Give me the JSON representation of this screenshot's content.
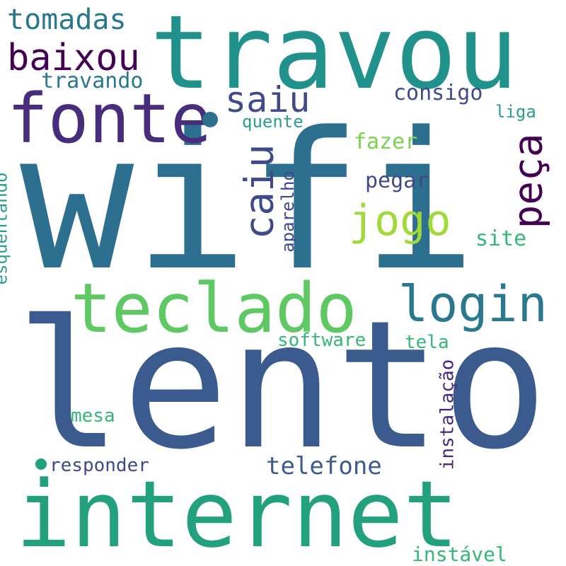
{
  "words": {
    "wifi": {
      "text": "wifi",
      "color": "#2d6f8f"
    },
    "lento": {
      "text": "lento",
      "color": "#3b5b8f"
    },
    "internet": {
      "text": "internet",
      "color": "#23a17e"
    },
    "travou": {
      "text": "travou",
      "color": "#21918c"
    },
    "fonte": {
      "text": "fonte",
      "color": "#472d7b"
    },
    "teclado": {
      "text": "teclado",
      "color": "#5ec962"
    },
    "login": {
      "text": "login",
      "color": "#2a788e"
    },
    "baixou": {
      "text": "baixou",
      "color": "#440154"
    },
    "tomadas": {
      "text": "tomadas",
      "color": "#2a788e"
    },
    "saiu": {
      "text": "saiu",
      "color": "#3e4a89"
    },
    "caiu": {
      "text": "caiu",
      "color": "#3e4a89"
    },
    "jogo": {
      "text": "jogo",
      "color": "#a0da39"
    },
    "peca": {
      "text": "peça",
      "color": "#440154"
    },
    "travando": {
      "text": "travando",
      "color": "#2a788e"
    },
    "consigo": {
      "text": "consigo",
      "color": "#3e4a89"
    },
    "liga": {
      "text": "liga",
      "color": "#2a9d8f"
    },
    "quente": {
      "text": "quente",
      "color": "#2a9d8f"
    },
    "fazer": {
      "text": "fazer",
      "color": "#7ad151"
    },
    "pegar": {
      "text": "pegar",
      "color": "#3e4a89"
    },
    "site": {
      "text": "site",
      "color": "#35b779"
    },
    "aparelho": {
      "text": "aparelho",
      "color": "#3e4a89"
    },
    "esquentando": {
      "text": "esquentando",
      "color": "#2a9d8f"
    },
    "software": {
      "text": "software",
      "color": "#35b779"
    },
    "tela": {
      "text": "tela",
      "color": "#35b779"
    },
    "instalacao": {
      "text": "instalação",
      "color": "#482878"
    },
    "mesa": {
      "text": "mesa",
      "color": "#35b779"
    },
    "telefone": {
      "text": "telefone",
      "color": "#3b5b8f"
    },
    "responder": {
      "text": "responder",
      "color": "#3e4a89"
    },
    "instavel": {
      "text": "instável",
      "color": "#35b779"
    }
  },
  "colors": {
    "background": "#ffffff",
    "dot_blue": "#2d6f8f",
    "dot_green": "#23a17e"
  }
}
